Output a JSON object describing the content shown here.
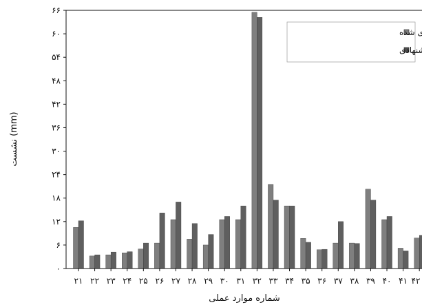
{
  "chart_data": {
    "type": "bar",
    "xlabel": "شماره موارد عملی",
    "ylabel": "نشست (mm)",
    "ylim": [
      0,
      66
    ],
    "yticks": [
      {
        "value": 0,
        "label": "۰"
      },
      {
        "value": 6,
        "label": "۶"
      },
      {
        "value": 12,
        "label": "۱۲"
      },
      {
        "value": 18,
        "label": "۱۸"
      },
      {
        "value": 24,
        "label": "۲۴"
      },
      {
        "value": 30,
        "label": "۳۰"
      },
      {
        "value": 36,
        "label": "۳۶"
      },
      {
        "value": 42,
        "label": "۴۲"
      },
      {
        "value": 48,
        "label": "۴۸"
      },
      {
        "value": 54,
        "label": "۵۴"
      },
      {
        "value": 60,
        "label": "۶۰"
      },
      {
        "value": 66,
        "label": "۶۶"
      }
    ],
    "categories": [
      "۲۱",
      "۲۲",
      "۲۳",
      "۲۴",
      "۲۵",
      "۲۶",
      "۲۷",
      "۲۸",
      "۲۹",
      "۳۰",
      "۳۱",
      "۳۲",
      "۳۳",
      "۳۴",
      "۳۵",
      "۳۶",
      "۳۷",
      "۳۸",
      "۳۹",
      "۴۰",
      "۴۱",
      "۴۲"
    ],
    "series": [
      {
        "name": "نشست اندازه گیری شده",
        "color": "#7f7f7f",
        "values": [
          10.5,
          3.2,
          3.5,
          4.0,
          5.0,
          6.5,
          12.5,
          7.5,
          6.0,
          12.5,
          12.5,
          65.5,
          21.5,
          16.0,
          7.7,
          4.8,
          6.5,
          6.5,
          20.3,
          12.5,
          5.2,
          7.8
        ]
      },
      {
        "name": "رابطه پیشنهادی",
        "color": "#6b6b6b",
        "values": [
          12.2,
          3.5,
          4.2,
          4.3,
          6.5,
          14.2,
          17.0,
          11.5,
          8.7,
          13.3,
          16.0,
          64.2,
          17.5,
          16.0,
          6.7,
          4.9,
          12.0,
          6.4,
          17.5,
          13.3,
          4.5,
          8.5
        ]
      }
    ],
    "legend_position": "top-right",
    "grid": false
  }
}
